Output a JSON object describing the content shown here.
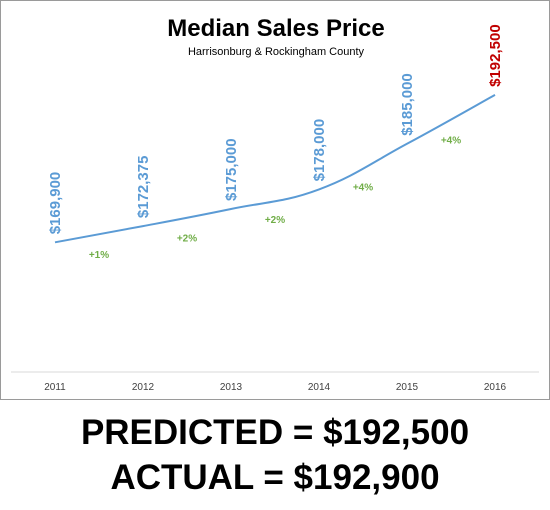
{
  "chart_data": {
    "type": "line",
    "title": "Median Sales Price",
    "subtitle": "Harrisonburg & Rockingham County",
    "x": [
      "2011",
      "2012",
      "2013",
      "2014",
      "2015",
      "2016"
    ],
    "series": [
      {
        "values": [
          169900,
          172375,
          175000,
          178000,
          185000,
          192500
        ],
        "labels": [
          "$169,900",
          "$172,375",
          "$175,000",
          "$178,000",
          "$185,000",
          "$192,500"
        ],
        "color": "#5b9bd5",
        "highlight_color": "#c00000"
      }
    ],
    "changes": [
      "+1%",
      "+2%",
      "+2%",
      "+4%",
      "+4%"
    ],
    "change_color": "#70ad47",
    "ylim": [
      150000,
      200000
    ],
    "grid": false,
    "legend": "none"
  },
  "footer": {
    "predicted": "PREDICTED = $192,500",
    "actual": "ACTUAL = $192,900"
  }
}
